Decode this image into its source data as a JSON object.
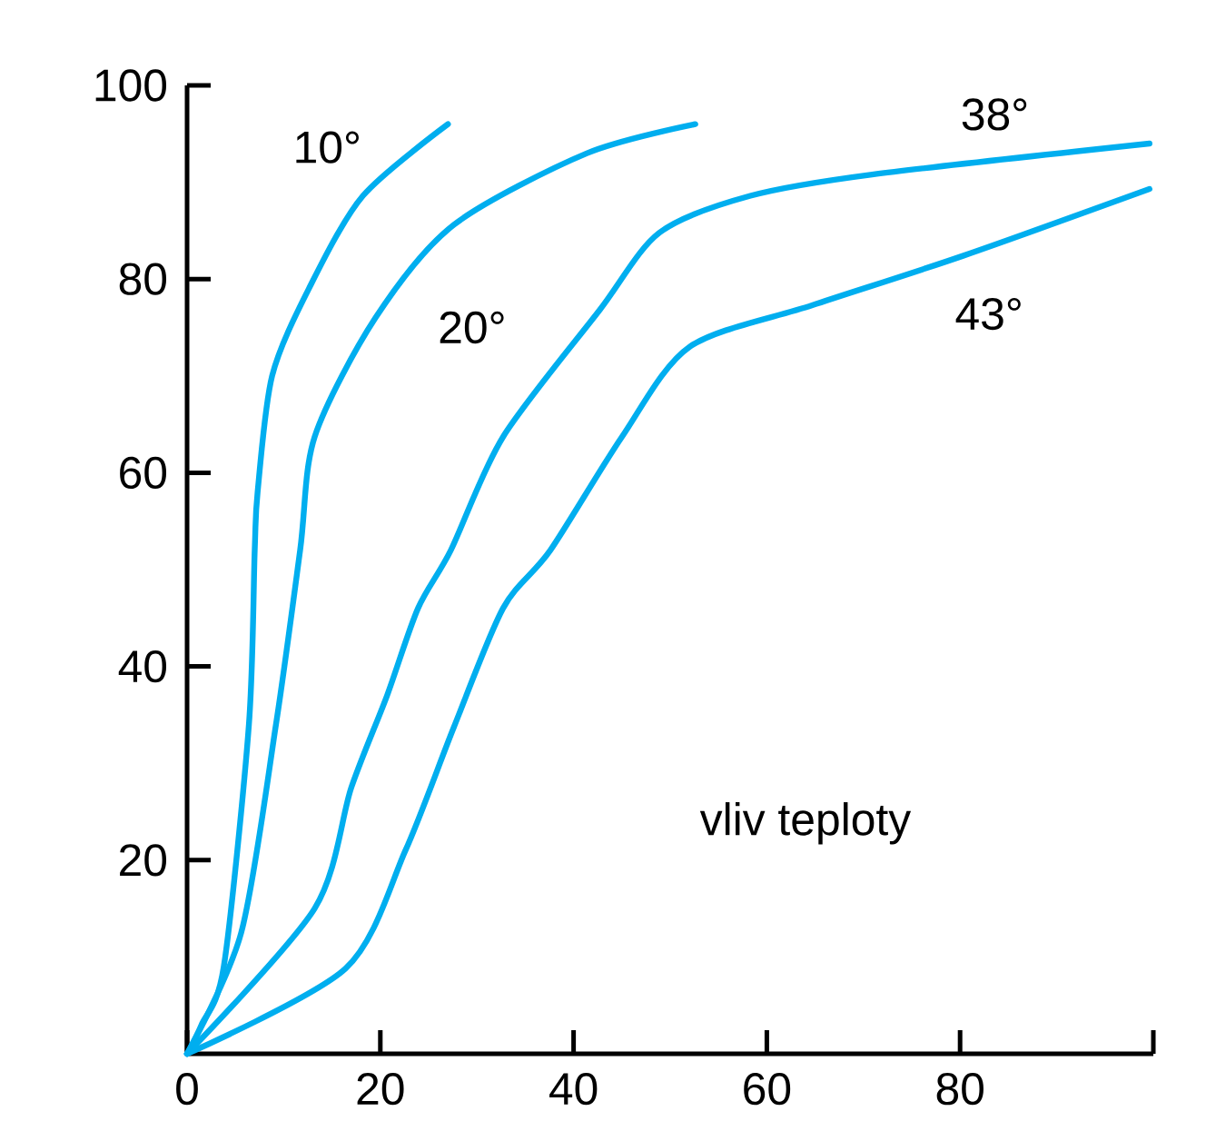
{
  "chart_data": {
    "type": "line",
    "xlim": [
      0,
      100
    ],
    "ylim": [
      0,
      100
    ],
    "xticks": [
      0,
      20,
      40,
      60,
      80,
      {
        "value": 100,
        "label": null
      }
    ],
    "yticks": [
      20,
      40,
      60,
      80,
      100
    ],
    "grid": false,
    "marker": "none",
    "line_style": "solid",
    "series": [
      {
        "name": "10°",
        "color": "#00aeef",
        "x": [
          0,
          1.5,
          3.8,
          6.4,
          7,
          7.3,
          8.8,
          12.6,
          18.2,
          27
        ],
        "values": [
          0,
          3,
          9,
          34,
          52,
          58,
          70,
          79,
          88.6,
          96
        ]
      },
      {
        "name": "20°",
        "color": "#00aeef",
        "x": [
          0,
          5.6,
          9.2,
          11.7,
          13.2,
          19.5,
          27.6,
          41.4,
          52.6
        ],
        "values": [
          0,
          12.5,
          34,
          52,
          63.7,
          76,
          85.6,
          93,
          96
        ]
      },
      {
        "name": "38°",
        "color": "#00aeef",
        "x": [
          0,
          13.2,
          17,
          20.7,
          23.9,
          27.3,
          32.7,
          42.7,
          48.9,
          58.3,
          70.9,
          99.6
        ],
        "values": [
          0,
          15,
          27.5,
          37,
          46,
          52,
          63.7,
          76.8,
          84.8,
          88.6,
          90.8,
          94
        ]
      },
      {
        "name": "43°",
        "color": "#00aeef",
        "x": [
          0,
          16.4,
          22.6,
          27.6,
          32.7,
          37.6,
          45,
          52,
          64.7,
          80.3,
          99.6
        ],
        "values": [
          0,
          8.8,
          21,
          33.7,
          46,
          52,
          63.7,
          73,
          77.3,
          82.4,
          89.3
        ]
      }
    ],
    "annotations": [
      "vliv teploty"
    ]
  }
}
